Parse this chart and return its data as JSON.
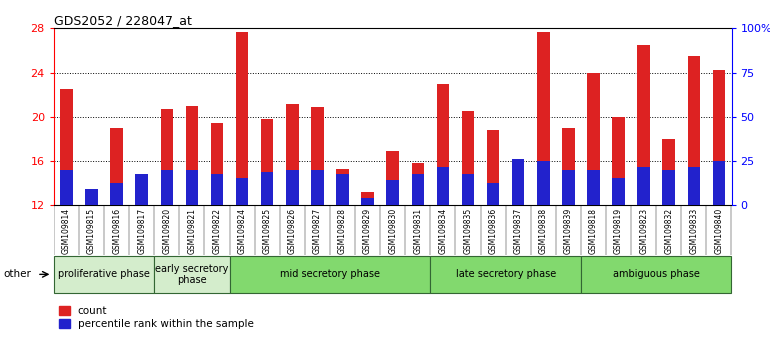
{
  "title": "GDS2052 / 228047_at",
  "samples": [
    "GSM109814",
    "GSM109815",
    "GSM109816",
    "GSM109817",
    "GSM109820",
    "GSM109821",
    "GSM109822",
    "GSM109824",
    "GSM109825",
    "GSM109826",
    "GSM109827",
    "GSM109828",
    "GSM109829",
    "GSM109830",
    "GSM109831",
    "GSM109834",
    "GSM109835",
    "GSM109836",
    "GSM109837",
    "GSM109838",
    "GSM109839",
    "GSM109818",
    "GSM109819",
    "GSM109823",
    "GSM109832",
    "GSM109833",
    "GSM109840"
  ],
  "count_values": [
    22.5,
    13.2,
    19.0,
    14.8,
    20.7,
    21.0,
    19.4,
    27.7,
    19.8,
    21.2,
    20.9,
    15.3,
    13.2,
    16.9,
    15.8,
    23.0,
    20.5,
    18.8,
    15.7,
    27.7,
    19.0,
    24.0,
    20.0,
    26.5,
    18.0,
    25.5,
    24.2
  ],
  "percentile_values": [
    15.2,
    13.5,
    14.0,
    14.8,
    15.2,
    15.2,
    14.8,
    14.5,
    15.0,
    15.2,
    15.2,
    14.8,
    12.7,
    14.3,
    14.8,
    15.5,
    14.8,
    14.0,
    16.2,
    16.0,
    15.2,
    15.2,
    14.5,
    15.5,
    15.2,
    15.5,
    16.0
  ],
  "phases": [
    {
      "name": "proliferative phase",
      "start": 0,
      "end": 4
    },
    {
      "name": "early secretory\nphase",
      "start": 4,
      "end": 7
    },
    {
      "name": "mid secretory phase",
      "start": 7,
      "end": 15
    },
    {
      "name": "late secretory phase",
      "start": 15,
      "end": 21
    },
    {
      "name": "ambiguous phase",
      "start": 21,
      "end": 27
    }
  ],
  "phase_colors": [
    "#d4edcc",
    "#d4edcc",
    "#82d96e",
    "#82d96e",
    "#82d96e"
  ],
  "bar_color_red": "#dd2222",
  "bar_color_blue": "#2222cc",
  "ylim_left": [
    12,
    28
  ],
  "yticks_left": [
    12,
    16,
    20,
    24,
    28
  ],
  "ylim_right": [
    0,
    100
  ],
  "yticks_right": [
    0,
    25,
    50,
    75,
    100
  ],
  "ytick_right_labels": [
    "0",
    "25",
    "50",
    "75",
    "100%"
  ],
  "bar_width": 0.5,
  "tick_bg_color": "#d0d0d0"
}
